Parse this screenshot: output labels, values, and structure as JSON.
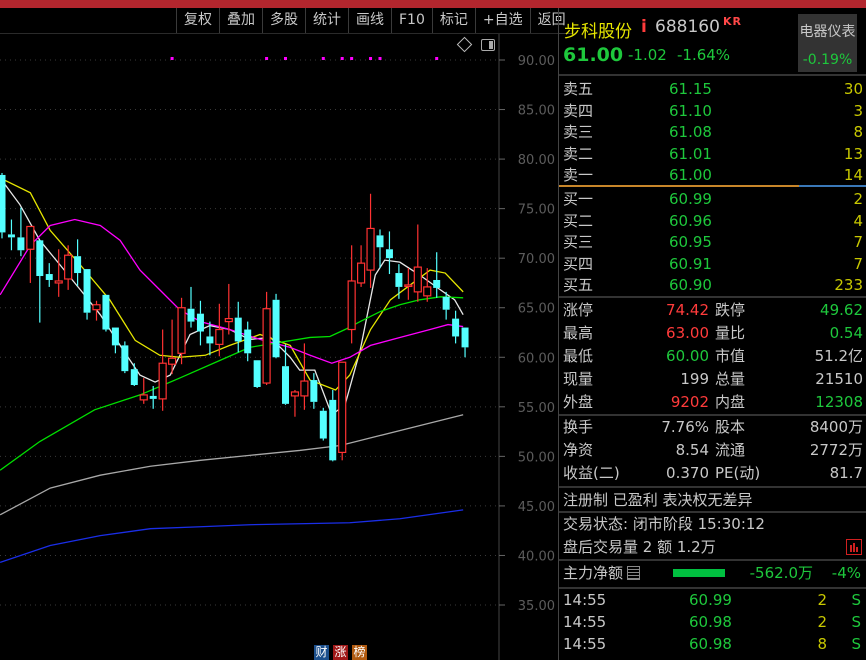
{
  "toolbar": {
    "buttons": [
      "复权",
      "叠加",
      "多股",
      "统计",
      "画线",
      "F10",
      "标记",
      "+自选",
      "返回"
    ]
  },
  "stock": {
    "name": "步科股份",
    "info_icon": "i",
    "code": "688160",
    "tag": "KR",
    "price": "61.00",
    "change": "-1.02",
    "change_pct": "-1.64%"
  },
  "sector": {
    "name": "电器仪表",
    "change_pct": "-0.19%"
  },
  "order_book": {
    "asks": [
      {
        "label": "卖五",
        "price": "61.15",
        "volume": "30"
      },
      {
        "label": "卖四",
        "price": "61.10",
        "volume": "3"
      },
      {
        "label": "卖三",
        "price": "61.08",
        "volume": "8"
      },
      {
        "label": "卖二",
        "price": "61.01",
        "volume": "13"
      },
      {
        "label": "卖一",
        "price": "61.00",
        "volume": "14"
      }
    ],
    "bids": [
      {
        "label": "买一",
        "price": "60.99",
        "volume": "2"
      },
      {
        "label": "买二",
        "price": "60.96",
        "volume": "4"
      },
      {
        "label": "买三",
        "price": "60.95",
        "volume": "7"
      },
      {
        "label": "买四",
        "price": "60.91",
        "volume": "7"
      },
      {
        "label": "买五",
        "price": "60.90",
        "volume": "233"
      }
    ],
    "bid_ask_ratio": 0.78,
    "ratio_colors": {
      "bid": "#c8862a",
      "ask": "#3a78b8"
    }
  },
  "stats": [
    {
      "l1": "涨停",
      "v1": "74.42",
      "c1": "r",
      "l2": "跌停",
      "v2": "49.62",
      "c2": "g"
    },
    {
      "l1": "最高",
      "v1": "63.00",
      "c1": "r",
      "l2": "量比",
      "v2": "0.54",
      "c2": "g"
    },
    {
      "l1": "最低",
      "v1": "60.00",
      "c1": "g",
      "l2": "市值",
      "v2": "51.2亿",
      "c2": "w"
    },
    {
      "l1": "现量",
      "v1": "199",
      "c1": "w",
      "l2": "总量",
      "v2": "21510",
      "c2": "w"
    },
    {
      "l1": "外盘",
      "v1": "9202",
      "c1": "r",
      "l2": "内盘",
      "v2": "12308",
      "c2": "g"
    }
  ],
  "fundamentals": [
    {
      "l1": "换手",
      "v1": "7.76%",
      "l2": "股本",
      "v2": "8400万"
    },
    {
      "l1": "净资",
      "v1": "8.54",
      "l2": "流通",
      "v2": "2772万"
    },
    {
      "l1": "收益(二)",
      "v1": "0.370",
      "l2": "PE(动)",
      "v2": "81.7"
    }
  ],
  "tags": "注册制 已盈利 表决权无差异",
  "status": {
    "trade_status": "交易状态: 闭市阶段 15:30:12",
    "after_hours": "盘后交易量 2 额 1.2万"
  },
  "main_flow": {
    "label": "主力净额",
    "amount": "-562.0万",
    "pct": "-4%"
  },
  "ticks": [
    {
      "time": "14:55",
      "price": "60.99",
      "volume": "2",
      "side": "S"
    },
    {
      "time": "14:55",
      "price": "60.98",
      "volume": "2",
      "side": "S"
    },
    {
      "time": "14:55",
      "price": "60.98",
      "volume": "8",
      "side": "S"
    }
  ],
  "bottom_badges": [
    {
      "text": "财",
      "color": "#1c4f8c"
    },
    {
      "text": "涨",
      "color": "#a01818"
    },
    {
      "text": "榜",
      "color": "#b05a10"
    }
  ],
  "chart_data": {
    "type": "candlestick",
    "y_ticks": [
      "90.00",
      "85.00",
      "80.00",
      "75.00",
      "70.00",
      "65.00",
      "60.00",
      "55.00",
      "50.00",
      "45.00",
      "40.00",
      "35.00"
    ],
    "ylim": [
      35,
      90
    ],
    "grid": true,
    "colors": {
      "up": "#ff3232",
      "down": "#54ffff",
      "marker": "#ff00ff"
    },
    "candles": [
      [
        78.4,
        72.6,
        78.6,
        72.0
      ],
      [
        72.4,
        72.1,
        73.9,
        70.8
      ],
      [
        72.1,
        70.8,
        75.1,
        70.2
      ],
      [
        70.9,
        73.2,
        73.2,
        67.5
      ],
      [
        71.8,
        68.2,
        71.8,
        63.5
      ],
      [
        68.4,
        67.8,
        69.5,
        67.1
      ],
      [
        67.5,
        67.7,
        70.9,
        66.1
      ],
      [
        67.9,
        70.3,
        71.3,
        66.8
      ],
      [
        70.2,
        68.5,
        71.9,
        67.2
      ],
      [
        68.9,
        64.5,
        68.9,
        63.8
      ],
      [
        64.8,
        65.3,
        65.7,
        63.7
      ],
      [
        66.3,
        62.8,
        66.3,
        62.6
      ],
      [
        63.0,
        61.2,
        63.0,
        60.4
      ],
      [
        61.2,
        58.6,
        61.6,
        58.4
      ],
      [
        58.8,
        57.2,
        59.4,
        57.1
      ],
      [
        55.7,
        56.2,
        57.9,
        55.3
      ],
      [
        56.1,
        55.8,
        57.1,
        54.8
      ],
      [
        55.8,
        59.4,
        62.8,
        54.6
      ],
      [
        59.3,
        59.9,
        63.8,
        58.3
      ],
      [
        60.4,
        65.0,
        66.0,
        59.3
      ],
      [
        64.9,
        63.6,
        67.1,
        63.0
      ],
      [
        64.4,
        62.6,
        65.7,
        61.2
      ],
      [
        62.1,
        61.4,
        63.6,
        60.2
      ],
      [
        61.3,
        62.8,
        65.4,
        60.1
      ],
      [
        63.6,
        63.9,
        67.4,
        62.3
      ],
      [
        64.0,
        61.6,
        65.6,
        60.5
      ],
      [
        62.8,
        60.4,
        63.6,
        59.6
      ],
      [
        59.7,
        57.0,
        59.7,
        56.9
      ],
      [
        57.4,
        64.9,
        66.6,
        57.2
      ],
      [
        65.8,
        60.0,
        66.4,
        59.9
      ],
      [
        59.1,
        55.3,
        61.3,
        55.2
      ],
      [
        56.1,
        56.5,
        56.7,
        54.0
      ],
      [
        56.1,
        57.6,
        61.4,
        54.7
      ],
      [
        57.7,
        55.5,
        58.4,
        54.8
      ],
      [
        54.6,
        51.8,
        54.9,
        51.6
      ],
      [
        55.7,
        49.6,
        56.7,
        49.5
      ],
      [
        50.4,
        59.5,
        59.5,
        49.6
      ],
      [
        62.8,
        67.7,
        71.3,
        61.4
      ],
      [
        67.5,
        69.5,
        71.3,
        67.1
      ],
      [
        68.8,
        73.0,
        76.5,
        67.0
      ],
      [
        72.3,
        71.1,
        72.9,
        69.0
      ],
      [
        70.9,
        70.0,
        72.7,
        68.4
      ],
      [
        68.5,
        67.1,
        69.4,
        65.9
      ],
      [
        67.2,
        67.3,
        69.0,
        65.8
      ],
      [
        66.6,
        69.1,
        73.4,
        65.6
      ],
      [
        66.2,
        67.1,
        69.0,
        65.6
      ],
      [
        67.8,
        67.0,
        70.6,
        66.0
      ],
      [
        66.1,
        64.8,
        66.6,
        63.8
      ],
      [
        63.9,
        62.1,
        64.7,
        61.4
      ],
      [
        63.0,
        61.0,
        63.0,
        60.0
      ]
    ],
    "markers": [
      18,
      28,
      30,
      34,
      36,
      37,
      39,
      40,
      46
    ],
    "lines": [
      {
        "color": "#e8e8e8",
        "points": [
          [
            -0.2,
            78.1
          ],
          [
            1.9,
            75.4
          ],
          [
            4.0,
            71.8
          ],
          [
            5.9,
            69.6
          ],
          [
            8.3,
            66.8
          ],
          [
            10.4,
            64.3
          ],
          [
            12.5,
            61.2
          ],
          [
            14.6,
            58.2
          ],
          [
            16.2,
            57.5
          ],
          [
            17.8,
            58.2
          ],
          [
            19.9,
            62.3
          ],
          [
            22.0,
            63.2
          ],
          [
            24.1,
            62.8
          ],
          [
            26.2,
            61.8
          ],
          [
            28.4,
            62.0
          ],
          [
            30.5,
            60.0
          ],
          [
            31.5,
            58.7
          ],
          [
            33.1,
            58.7
          ],
          [
            34.9,
            54.2
          ],
          [
            36.3,
            55.2
          ],
          [
            37.9,
            60.7
          ],
          [
            39.5,
            68.3
          ],
          [
            40.5,
            69.8
          ],
          [
            42.1,
            69.6
          ],
          [
            44.2,
            68.3
          ],
          [
            46.4,
            66.8
          ],
          [
            47.9,
            65.8
          ],
          [
            48.8,
            64.3
          ]
        ]
      },
      {
        "color": "#e6e600",
        "points": [
          [
            -0.2,
            78.1
          ],
          [
            3.0,
            76.6
          ],
          [
            5.1,
            72.8
          ],
          [
            8.3,
            69.3
          ],
          [
            11.4,
            65.8
          ],
          [
            14.1,
            61.7
          ],
          [
            16.7,
            60.2
          ],
          [
            18.8,
            60.0
          ],
          [
            21.5,
            60.2
          ],
          [
            24.1,
            61.2
          ],
          [
            27.3,
            62.3
          ],
          [
            30.5,
            61.2
          ],
          [
            32.6,
            57.7
          ],
          [
            35.3,
            56.7
          ],
          [
            36.8,
            58.2
          ],
          [
            39.0,
            62.8
          ],
          [
            41.1,
            65.8
          ],
          [
            43.2,
            67.3
          ],
          [
            45.3,
            68.8
          ],
          [
            46.9,
            68.5
          ],
          [
            48.8,
            66.6
          ]
        ]
      },
      {
        "color": "#ff00ff",
        "points": [
          [
            -0.2,
            66.3
          ],
          [
            3.0,
            71.3
          ],
          [
            5.1,
            73.3
          ],
          [
            7.7,
            73.9
          ],
          [
            10.4,
            73.3
          ],
          [
            12.5,
            71.8
          ],
          [
            14.6,
            68.8
          ],
          [
            16.7,
            66.8
          ],
          [
            18.8,
            64.8
          ],
          [
            21.0,
            63.6
          ],
          [
            24.1,
            62.8
          ],
          [
            27.3,
            61.8
          ],
          [
            30.5,
            61.0
          ],
          [
            32.6,
            60.2
          ],
          [
            34.9,
            59.4
          ],
          [
            36.8,
            60.0
          ],
          [
            39.0,
            61.2
          ],
          [
            42.1,
            62.0
          ],
          [
            45.3,
            62.8
          ],
          [
            47.2,
            63.3
          ],
          [
            48.8,
            63.1
          ]
        ]
      },
      {
        "color": "#00e000",
        "points": [
          [
            -0.2,
            48.6
          ],
          [
            4.0,
            51.5
          ],
          [
            9.8,
            54.7
          ],
          [
            14.6,
            56.2
          ],
          [
            18.8,
            57.9
          ],
          [
            23.1,
            59.7
          ],
          [
            26.2,
            61.0
          ],
          [
            29.4,
            61.5
          ],
          [
            32.6,
            62.0
          ],
          [
            34.7,
            62.1
          ],
          [
            36.3,
            62.8
          ],
          [
            37.9,
            63.6
          ],
          [
            40.0,
            64.6
          ],
          [
            42.1,
            65.3
          ],
          [
            44.2,
            65.8
          ],
          [
            46.4,
            66.1
          ],
          [
            48.8,
            66.0
          ]
        ]
      },
      {
        "color": "#a8a8a8",
        "points": [
          [
            -0.2,
            44.1
          ],
          [
            5.1,
            46.8
          ],
          [
            10.4,
            48.1
          ],
          [
            15.7,
            49.0
          ],
          [
            21.0,
            49.6
          ],
          [
            26.2,
            50.1
          ],
          [
            31.5,
            50.6
          ],
          [
            35.8,
            51.1
          ],
          [
            40.0,
            52.1
          ],
          [
            44.2,
            53.1
          ],
          [
            48.8,
            54.2
          ]
        ]
      },
      {
        "color": "#1a2ee8",
        "points": [
          [
            -0.2,
            39.3
          ],
          [
            5.1,
            41.0
          ],
          [
            10.4,
            42.0
          ],
          [
            15.7,
            42.7
          ],
          [
            21.0,
            42.9
          ],
          [
            26.2,
            43.1
          ],
          [
            31.5,
            43.2
          ],
          [
            36.8,
            43.3
          ],
          [
            42.1,
            43.7
          ],
          [
            48.8,
            44.6
          ]
        ]
      }
    ]
  }
}
